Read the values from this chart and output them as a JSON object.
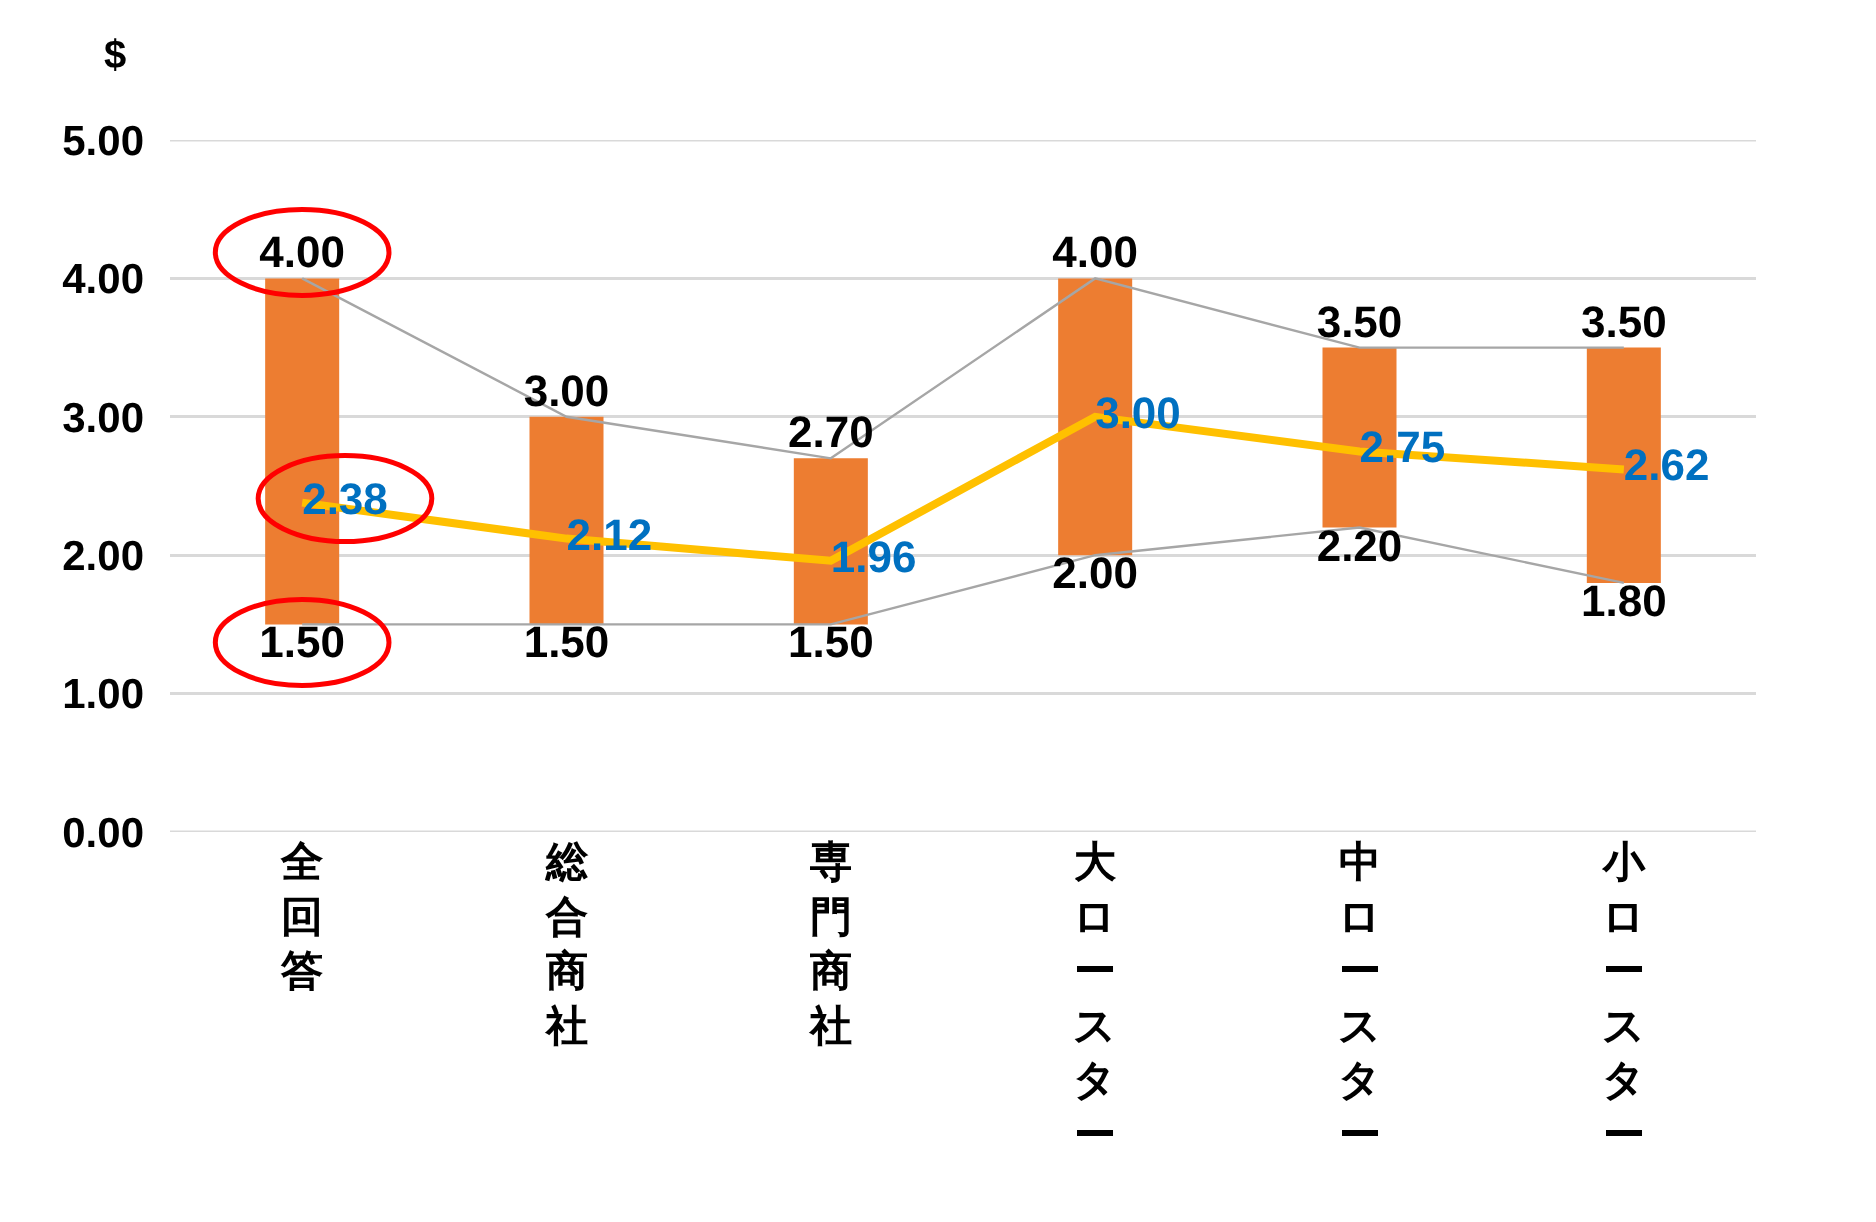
{
  "chart_data": {
    "type": "bar",
    "ylabel": "$",
    "categories": [
      "全回答",
      "総合商社",
      "専門商社",
      "大ロースター",
      "中ロースター",
      "小ロースター"
    ],
    "series": [
      {
        "color": "#ed7d31",
        "base": [
          1.5,
          1.5,
          1.5,
          2.0,
          2.2,
          1.8
        ],
        "values": [
          2.5,
          1.5,
          1.2,
          2.0,
          1.3,
          1.7
        ]
      },
      {
        "type": "line",
        "color": "#a6a6a6",
        "values": [
          4.0,
          3.0,
          2.7,
          4.0,
          3.5,
          3.5
        ],
        "value_labels": [
          "4.00",
          "3.00",
          "2.70",
          "4.00",
          "3.50",
          "3.50"
        ]
      },
      {
        "type": "line",
        "color": "#a6a6a6",
        "values": [
          1.5,
          1.5,
          1.5,
          2.0,
          2.2,
          1.8
        ],
        "value_labels": [
          "1.50",
          "1.50",
          "1.50",
          "2.00",
          "2.20",
          "1.80"
        ]
      },
      {
        "type": "line",
        "color": "#ffc000",
        "values": [
          2.38,
          2.12,
          1.96,
          3.0,
          2.75,
          2.62
        ],
        "value_labels": [
          "2.38",
          "2.12",
          "1.96",
          "3.00",
          "2.75",
          "2.62"
        ]
      }
    ],
    "ylim": [
      0,
      5
    ],
    "yticks": [
      {
        "value": 0,
        "label": "0.00"
      },
      {
        "value": 1,
        "label": "1.00"
      },
      {
        "value": 2,
        "label": "2.00"
      },
      {
        "value": 3,
        "label": "3.00"
      },
      {
        "value": 4,
        "label": "4.00"
      },
      {
        "value": 5,
        "label": "5.00"
      }
    ],
    "grid": "y",
    "marker": "none"
  }
}
